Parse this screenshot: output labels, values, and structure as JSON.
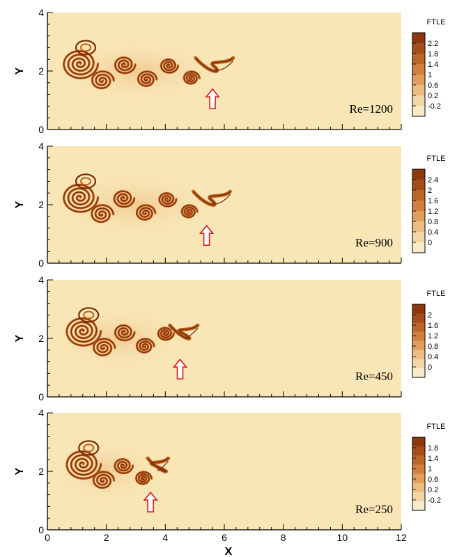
{
  "chart_data": [
    {
      "type": "heatmap",
      "xlabel": "",
      "ylabel": "Y",
      "xlim": [
        0,
        12
      ],
      "ylim": [
        0,
        4
      ],
      "x_ticks": [],
      "y_ticks": [
        "0",
        "2",
        "4"
      ],
      "annotation": "Re=1200",
      "arrow_at": {
        "x": 5.6,
        "y": 1.0
      },
      "wake_extent_x": [
        0.6,
        6.3
      ],
      "colorbar": {
        "title": "FTLE",
        "levels": [
          "2.2",
          "1.8",
          "1.4",
          "1",
          "0.6",
          "0.2",
          "-0.2"
        ]
      }
    },
    {
      "type": "heatmap",
      "xlabel": "",
      "ylabel": "Y",
      "xlim": [
        0,
        12
      ],
      "ylim": [
        0,
        4
      ],
      "x_ticks": [],
      "y_ticks": [
        "0",
        "2",
        "4"
      ],
      "annotation": "Re=900",
      "arrow_at": {
        "x": 5.4,
        "y": 0.9
      },
      "wake_extent_x": [
        0.6,
        6.2
      ],
      "colorbar": {
        "title": "FTLE",
        "levels": [
          "2.4",
          "2",
          "1.6",
          "1.2",
          "0.8",
          "0.4",
          "0"
        ]
      }
    },
    {
      "type": "heatmap",
      "xlabel": "",
      "ylabel": "Y",
      "xlim": [
        0,
        12
      ],
      "ylim": [
        0,
        4
      ],
      "x_ticks": [],
      "y_ticks": [
        "0",
        "2",
        "4"
      ],
      "annotation": "Re=450",
      "arrow_at": {
        "x": 4.5,
        "y": 0.9
      },
      "wake_extent_x": [
        0.7,
        5.1
      ],
      "colorbar": {
        "title": "FTLE",
        "levels": [
          "2",
          "1.6",
          "1.2",
          "0.8",
          "0.4",
          "0"
        ]
      }
    },
    {
      "type": "heatmap",
      "xlabel": "X",
      "ylabel": "Y",
      "xlim": [
        0,
        12
      ],
      "ylim": [
        0,
        4
      ],
      "x_ticks": [
        "0",
        "2",
        "4",
        "6",
        "8",
        "10",
        "12"
      ],
      "y_ticks": [
        "0",
        "2",
        "4"
      ],
      "annotation": "Re=250",
      "arrow_at": {
        "x": 3.5,
        "y": 0.9
      },
      "wake_extent_x": [
        0.7,
        4.1
      ],
      "colorbar": {
        "title": "FTLE",
        "levels": [
          "1.8",
          "1.4",
          "1",
          "0.6",
          "0.2",
          "-0.2"
        ]
      }
    }
  ],
  "colors": {
    "background": "#f8e6b6",
    "vortex_dark": "#7a2e08",
    "vortex_mid": "#c0601e",
    "vortex_light": "#e5a060",
    "arrow": "#d8191c"
  },
  "colorbar_ramp": [
    "#8b3a10",
    "#a54c1a",
    "#bc6528",
    "#d07f3e",
    "#e09e5c",
    "#ebbd80",
    "#f2d7a5",
    "#f7ebc9"
  ]
}
